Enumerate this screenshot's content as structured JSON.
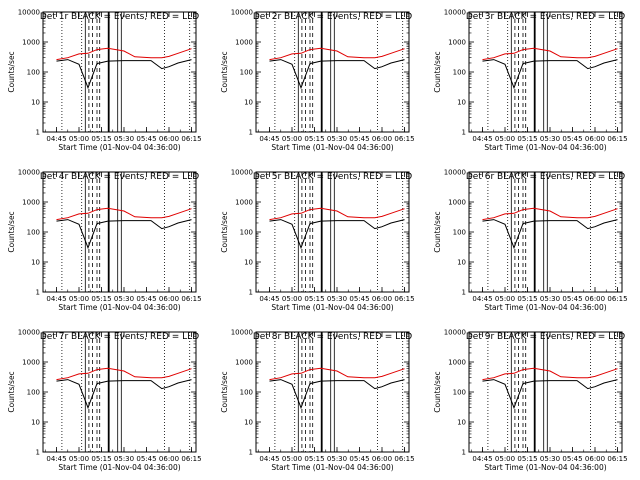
{
  "layout": {
    "rows": 3,
    "cols": 3
  },
  "chart_data": [
    {
      "type": "line",
      "title": "Det 1r BLACK = Events, RED = LLD",
      "xlabel": "Start Time (01-Nov-04 04:36:00)",
      "ylabel": "Counts/sec",
      "yscale": "log",
      "ylim": [
        1,
        10000
      ],
      "x_ticks": [
        "04:45",
        "05:00",
        "05:15",
        "05:30",
        "05:45",
        "06:00",
        "06:15"
      ],
      "y_ticks": [
        "1",
        "10",
        "100",
        "1000",
        "10000"
      ],
      "series": [
        {
          "color": "#000000",
          "x_hours": [
            4.75,
            4.875,
            5.0,
            5.1,
            5.2,
            5.32,
            5.5,
            5.62,
            5.8,
            5.92,
            6.0,
            6.1,
            6.25
          ],
          "values": [
            230,
            260,
            180,
            30,
            190,
            230,
            240,
            240,
            240,
            130,
            150,
            200,
            260
          ]
        },
        {
          "color": "#e00000",
          "x_hours": [
            4.75,
            4.875,
            5.0,
            5.1,
            5.2,
            5.32,
            5.5,
            5.62,
            5.8,
            5.92,
            6.0,
            6.1,
            6.25
          ],
          "values": [
            260,
            300,
            400,
            420,
            560,
            620,
            500,
            320,
            300,
            300,
            330,
            420,
            600
          ]
        }
      ]
    },
    {
      "type": "line",
      "title": "Det 2r BLACK = Events, RED = LLD",
      "xlabel": "Start Time (01-Nov-04 04:36:00)",
      "ylabel": "Counts/sec",
      "yscale": "log",
      "ylim": [
        1,
        10000
      ],
      "x_ticks": [
        "04:45",
        "05:00",
        "05:15",
        "05:30",
        "05:45",
        "06:00",
        "06:15"
      ],
      "y_ticks": [
        "1",
        "10",
        "100",
        "1000",
        "10000"
      ],
      "series": [
        {
          "color": "#000000",
          "x_hours": [
            4.75,
            4.875,
            5.0,
            5.1,
            5.2,
            5.32,
            5.5,
            5.62,
            5.8,
            5.92,
            6.0,
            6.1,
            6.25
          ],
          "values": [
            230,
            260,
            180,
            30,
            190,
            230,
            240,
            240,
            240,
            130,
            150,
            200,
            260
          ]
        },
        {
          "color": "#e00000",
          "x_hours": [
            4.75,
            4.875,
            5.0,
            5.1,
            5.2,
            5.32,
            5.5,
            5.62,
            5.8,
            5.92,
            6.0,
            6.1,
            6.25
          ],
          "values": [
            260,
            300,
            400,
            420,
            560,
            620,
            500,
            320,
            300,
            300,
            330,
            420,
            600
          ]
        }
      ]
    },
    {
      "type": "line",
      "title": "Det 3r BLACK = Events, RED = LLD",
      "xlabel": "Start Time (01-Nov-04 04:36:00)",
      "ylabel": "Counts/sec",
      "yscale": "log",
      "ylim": [
        1,
        10000
      ],
      "x_ticks": [
        "04:45",
        "05:00",
        "05:15",
        "05:30",
        "05:45",
        "06:00",
        "06:15"
      ],
      "y_ticks": [
        "1",
        "10",
        "100",
        "1000",
        "10000"
      ],
      "series": [
        {
          "color": "#000000",
          "x_hours": [
            4.75,
            4.875,
            5.0,
            5.1,
            5.2,
            5.32,
            5.5,
            5.62,
            5.8,
            5.92,
            6.0,
            6.1,
            6.25
          ],
          "values": [
            230,
            260,
            180,
            30,
            190,
            230,
            240,
            240,
            240,
            130,
            150,
            200,
            260
          ]
        },
        {
          "color": "#e00000",
          "x_hours": [
            4.75,
            4.875,
            5.0,
            5.1,
            5.2,
            5.32,
            5.5,
            5.62,
            5.8,
            5.92,
            6.0,
            6.1,
            6.25
          ],
          "values": [
            260,
            300,
            400,
            420,
            560,
            620,
            500,
            320,
            300,
            300,
            330,
            420,
            600
          ]
        }
      ]
    },
    {
      "type": "line",
      "title": "Det 4r BLACK = Events, RED = LLD",
      "xlabel": "Start Time (01-Nov-04 04:36:00)",
      "ylabel": "Counts/sec",
      "yscale": "log",
      "ylim": [
        1,
        10000
      ],
      "x_ticks": [
        "04:45",
        "05:00",
        "05:15",
        "05:30",
        "05:45",
        "06:00",
        "06:15"
      ],
      "y_ticks": [
        "1",
        "10",
        "100",
        "1000",
        "10000"
      ],
      "series": [
        {
          "color": "#000000",
          "x_hours": [
            4.75,
            4.875,
            5.0,
            5.1,
            5.2,
            5.32,
            5.5,
            5.62,
            5.8,
            5.92,
            6.0,
            6.1,
            6.25
          ],
          "values": [
            230,
            260,
            180,
            30,
            190,
            230,
            240,
            240,
            240,
            130,
            150,
            200,
            260
          ]
        },
        {
          "color": "#e00000",
          "x_hours": [
            4.75,
            4.875,
            5.0,
            5.1,
            5.2,
            5.32,
            5.5,
            5.62,
            5.8,
            5.92,
            6.0,
            6.1,
            6.25
          ],
          "values": [
            260,
            300,
            400,
            420,
            560,
            620,
            500,
            320,
            300,
            300,
            330,
            420,
            600
          ]
        }
      ]
    },
    {
      "type": "line",
      "title": "Det 5r BLACK = Events, RED = LLD",
      "xlabel": "Start Time (01-Nov-04 04:36:00)",
      "ylabel": "Counts/sec",
      "yscale": "log",
      "ylim": [
        1,
        10000
      ],
      "x_ticks": [
        "04:45",
        "05:00",
        "05:15",
        "05:30",
        "05:45",
        "06:00",
        "06:15"
      ],
      "y_ticks": [
        "1",
        "10",
        "100",
        "1000",
        "10000"
      ],
      "series": [
        {
          "color": "#000000",
          "x_hours": [
            4.75,
            4.875,
            5.0,
            5.1,
            5.2,
            5.32,
            5.5,
            5.62,
            5.8,
            5.92,
            6.0,
            6.1,
            6.25
          ],
          "values": [
            230,
            260,
            180,
            30,
            190,
            230,
            240,
            240,
            240,
            130,
            150,
            200,
            260
          ]
        },
        {
          "color": "#e00000",
          "x_hours": [
            4.75,
            4.875,
            5.0,
            5.1,
            5.2,
            5.32,
            5.5,
            5.62,
            5.8,
            5.92,
            6.0,
            6.1,
            6.25
          ],
          "values": [
            260,
            300,
            400,
            420,
            560,
            620,
            500,
            320,
            300,
            300,
            330,
            420,
            600
          ]
        }
      ]
    },
    {
      "type": "line",
      "title": "Det 6r BLACK = Events, RED = LLD",
      "xlabel": "Start Time (01-Nov-04 04:36:00)",
      "ylabel": "Counts/sec",
      "yscale": "log",
      "ylim": [
        1,
        10000
      ],
      "x_ticks": [
        "04:45",
        "05:00",
        "05:15",
        "05:30",
        "05:45",
        "06:00",
        "06:15"
      ],
      "y_ticks": [
        "1",
        "10",
        "100",
        "1000",
        "10000"
      ],
      "series": [
        {
          "color": "#000000",
          "x_hours": [
            4.75,
            4.875,
            5.0,
            5.1,
            5.2,
            5.32,
            5.5,
            5.62,
            5.8,
            5.92,
            6.0,
            6.1,
            6.25
          ],
          "values": [
            230,
            260,
            180,
            30,
            190,
            230,
            240,
            240,
            240,
            130,
            150,
            200,
            260
          ]
        },
        {
          "color": "#e00000",
          "x_hours": [
            4.75,
            4.875,
            5.0,
            5.1,
            5.2,
            5.32,
            5.5,
            5.62,
            5.8,
            5.92,
            6.0,
            6.1,
            6.25
          ],
          "values": [
            260,
            300,
            400,
            420,
            560,
            620,
            500,
            320,
            300,
            300,
            330,
            420,
            600
          ]
        }
      ]
    },
    {
      "type": "line",
      "title": "Det 7r BLACK = Events, RED = LLD",
      "xlabel": "Start Time (01-Nov-04 04:36:00)",
      "ylabel": "Counts/sec",
      "yscale": "log",
      "ylim": [
        1,
        10000
      ],
      "x_ticks": [
        "04:45",
        "05:00",
        "05:15",
        "05:30",
        "05:45",
        "06:00",
        "06:15"
      ],
      "y_ticks": [
        "1",
        "10",
        "100",
        "1000",
        "10000"
      ],
      "series": [
        {
          "color": "#000000",
          "x_hours": [
            4.75,
            4.875,
            5.0,
            5.1,
            5.2,
            5.32,
            5.5,
            5.62,
            5.8,
            5.92,
            6.0,
            6.1,
            6.25
          ],
          "values": [
            230,
            260,
            180,
            30,
            190,
            230,
            240,
            240,
            240,
            130,
            150,
            200,
            260
          ]
        },
        {
          "color": "#e00000",
          "x_hours": [
            4.75,
            4.875,
            5.0,
            5.1,
            5.2,
            5.32,
            5.5,
            5.62,
            5.8,
            5.92,
            6.0,
            6.1,
            6.25
          ],
          "values": [
            260,
            300,
            400,
            420,
            560,
            620,
            500,
            320,
            300,
            300,
            330,
            420,
            600
          ]
        }
      ]
    },
    {
      "type": "line",
      "title": "Det 8r BLACK = Events, RED = LLD",
      "xlabel": "Start Time (01-Nov-04 04:36:00)",
      "ylabel": "Counts/sec",
      "yscale": "log",
      "ylim": [
        1,
        10000
      ],
      "x_ticks": [
        "04:45",
        "05:00",
        "05:15",
        "05:30",
        "05:45",
        "06:00",
        "06:15"
      ],
      "y_ticks": [
        "1",
        "10",
        "100",
        "1000",
        "10000"
      ],
      "series": [
        {
          "color": "#000000",
          "x_hours": [
            4.75,
            4.875,
            5.0,
            5.1,
            5.2,
            5.32,
            5.5,
            5.62,
            5.8,
            5.92,
            6.0,
            6.1,
            6.25
          ],
          "values": [
            230,
            260,
            180,
            30,
            190,
            230,
            240,
            240,
            240,
            130,
            150,
            200,
            260
          ]
        },
        {
          "color": "#e00000",
          "x_hours": [
            4.75,
            4.875,
            5.0,
            5.1,
            5.2,
            5.32,
            5.5,
            5.62,
            5.8,
            5.92,
            6.0,
            6.1,
            6.25
          ],
          "values": [
            260,
            300,
            400,
            420,
            560,
            620,
            500,
            320,
            300,
            300,
            330,
            420,
            600
          ]
        }
      ]
    },
    {
      "type": "line",
      "title": "Det 9r BLACK = Events, RED = LLD",
      "xlabel": "Start Time (01-Nov-04 04:36:00)",
      "ylabel": "Counts/sec",
      "yscale": "log",
      "ylim": [
        1,
        10000
      ],
      "x_ticks": [
        "04:45",
        "05:00",
        "05:15",
        "05:30",
        "05:45",
        "06:00",
        "06:15"
      ],
      "y_ticks": [
        "1",
        "10",
        "100",
        "1000",
        "10000"
      ],
      "series": [
        {
          "color": "#000000",
          "x_hours": [
            4.75,
            4.875,
            5.0,
            5.1,
            5.2,
            5.32,
            5.5,
            5.62,
            5.8,
            5.92,
            6.0,
            6.1,
            6.25
          ],
          "values": [
            230,
            260,
            180,
            30,
            190,
            230,
            240,
            240,
            240,
            130,
            150,
            200,
            260
          ]
        },
        {
          "color": "#e00000",
          "x_hours": [
            4.75,
            4.875,
            5.0,
            5.1,
            5.2,
            5.32,
            5.5,
            5.62,
            5.8,
            5.92,
            6.0,
            6.1,
            6.25
          ],
          "values": [
            260,
            300,
            400,
            420,
            560,
            620,
            500,
            320,
            300,
            300,
            330,
            420,
            600
          ]
        }
      ]
    }
  ]
}
